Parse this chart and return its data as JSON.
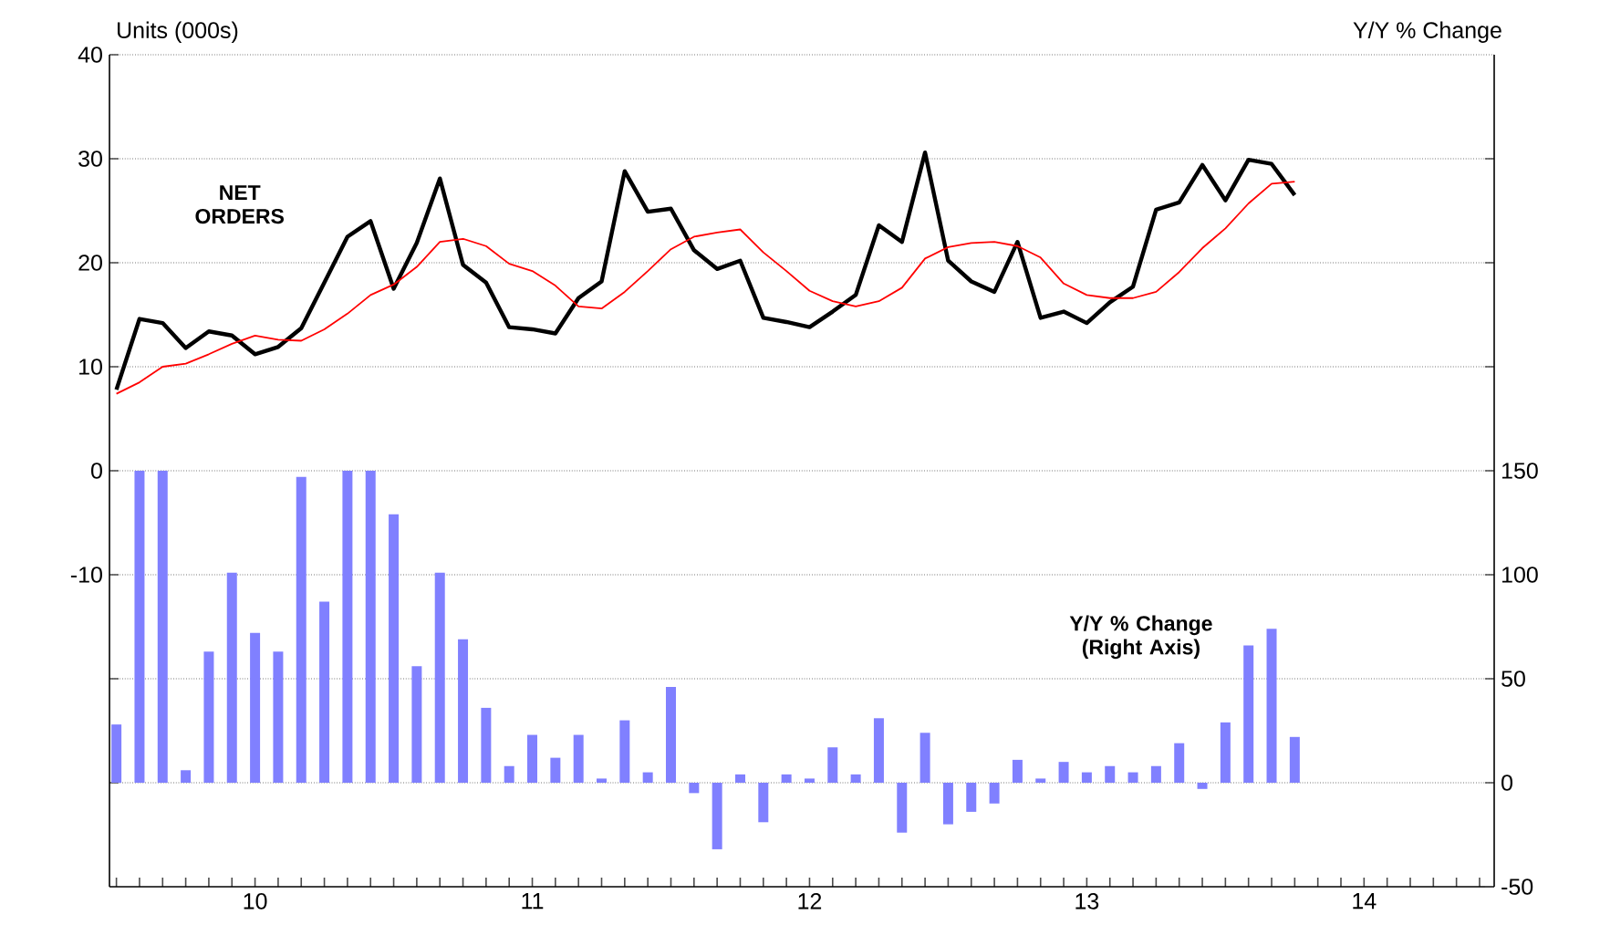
{
  "chart_data": {
    "type": "line",
    "ylabel": "Units (000s)",
    "y2label": "Y/Y % Change",
    "x": [
      "2010-01",
      "2010-02",
      "2010-03",
      "2010-04",
      "2010-05",
      "2010-06",
      "2010-07",
      "2010-08",
      "2010-09",
      "2010-10",
      "2010-11",
      "2010-12",
      "2011-01",
      "2011-02",
      "2011-03",
      "2011-04",
      "2011-05",
      "2011-06",
      "2011-07",
      "2011-08",
      "2011-09",
      "2011-10",
      "2011-11",
      "2011-12",
      "2012-01",
      "2012-02",
      "2012-03",
      "2012-04",
      "2012-05",
      "2012-06",
      "2012-07",
      "2012-08",
      "2012-09",
      "2012-10",
      "2012-11",
      "2012-12",
      "2013-01",
      "2013-02",
      "2013-03",
      "2013-04",
      "2013-05",
      "2013-06",
      "2013-07",
      "2013-08",
      "2013-09",
      "2013-10",
      "2013-11",
      "2013-12",
      "2014-01",
      "2014-02",
      "2014-03",
      "2014-04"
    ],
    "series": [
      {
        "name": "NET ORDERS",
        "color": "#000000",
        "values": [
          7.8,
          14.6,
          14.2,
          11.8,
          13.4,
          13.0,
          11.2,
          11.9,
          13.7,
          18.1,
          22.5,
          24.0,
          17.5,
          21.9,
          28.1,
          19.8,
          18.1,
          13.8,
          13.6,
          13.2,
          16.6,
          18.2,
          28.8,
          24.9,
          25.2,
          21.2,
          19.4,
          20.2,
          14.7,
          14.3,
          13.8,
          15.3,
          16.9,
          23.6,
          22.0,
          30.6,
          20.2,
          18.2,
          17.2,
          22.0,
          14.7,
          15.3,
          14.2,
          16.2,
          17.7,
          25.1,
          25.8,
          29.4,
          26.0,
          29.9,
          29.5,
          26.5
        ]
      },
      {
        "color": "#ff0000",
        "values": [
          7.4,
          8.5,
          10.0,
          10.3,
          11.2,
          12.2,
          13.0,
          12.6,
          12.5,
          13.6,
          15.1,
          16.9,
          17.9,
          19.6,
          22.0,
          22.3,
          21.6,
          19.9,
          19.2,
          17.8,
          15.8,
          15.6,
          17.2,
          19.2,
          21.3,
          22.5,
          22.9,
          23.2,
          21.0,
          19.2,
          17.3,
          16.3,
          15.8,
          16.3,
          17.6,
          20.4,
          21.5,
          21.9,
          22.0,
          21.6,
          20.5,
          18.0,
          16.9,
          16.6,
          16.6,
          17.2,
          19.1,
          21.4,
          23.3,
          25.7,
          27.6,
          27.8
        ]
      },
      {
        "name": "Y/Y % Change (Right Axis)",
        "type": "bar",
        "axis": "y2",
        "color": "#8080ff",
        "values": [
          28,
          150,
          150,
          6,
          63,
          101,
          72,
          63,
          147,
          87,
          150,
          150,
          129,
          56,
          101,
          69,
          36,
          8,
          23,
          12,
          23,
          2,
          30,
          5,
          46,
          -5,
          -32,
          4,
          -19,
          4,
          2,
          17,
          4,
          31,
          -24,
          24,
          -20,
          -14,
          -10,
          11,
          2,
          10,
          5,
          8,
          5,
          8,
          19,
          -3,
          29,
          66,
          74,
          22
        ]
      }
    ],
    "xlim": [
      "2009-12-22",
      "2014-12-20"
    ],
    "xticks": [
      {
        "value": "2010-01",
        "label": null
      },
      {
        "value": "2010-02",
        "label": null
      },
      {
        "value": "2010-03",
        "label": null
      },
      {
        "value": "2010-04",
        "label": null
      },
      {
        "value": "2010-05",
        "label": null
      },
      {
        "value": "2010-06",
        "label": null
      },
      {
        "value": "2010-07",
        "label": "10"
      },
      {
        "value": "2010-08",
        "label": null
      },
      {
        "value": "2010-09",
        "label": null
      },
      {
        "value": "2010-10",
        "label": null
      },
      {
        "value": "2010-11",
        "label": null
      },
      {
        "value": "2010-12",
        "label": null
      },
      {
        "value": "2011-01",
        "label": null
      },
      {
        "value": "2011-02",
        "label": null
      },
      {
        "value": "2011-03",
        "label": null
      },
      {
        "value": "2011-04",
        "label": null
      },
      {
        "value": "2011-05",
        "label": null
      },
      {
        "value": "2011-06",
        "label": null
      },
      {
        "value": "2011-07",
        "label": "11"
      },
      {
        "value": "2011-08",
        "label": null
      },
      {
        "value": "2011-09",
        "label": null
      },
      {
        "value": "2011-10",
        "label": null
      },
      {
        "value": "2011-11",
        "label": null
      },
      {
        "value": "2011-12",
        "label": null
      },
      {
        "value": "2012-01",
        "label": null
      },
      {
        "value": "2012-02",
        "label": null
      },
      {
        "value": "2012-03",
        "label": null
      },
      {
        "value": "2012-04",
        "label": null
      },
      {
        "value": "2012-05",
        "label": null
      },
      {
        "value": "2012-06",
        "label": null
      },
      {
        "value": "2012-07",
        "label": "12"
      },
      {
        "value": "2012-08",
        "label": null
      },
      {
        "value": "2012-09",
        "label": null
      },
      {
        "value": "2012-10",
        "label": null
      },
      {
        "value": "2012-11",
        "label": null
      },
      {
        "value": "2012-12",
        "label": null
      },
      {
        "value": "2013-01",
        "label": null
      },
      {
        "value": "2013-02",
        "label": null
      },
      {
        "value": "2013-03",
        "label": null
      },
      {
        "value": "2013-04",
        "label": null
      },
      {
        "value": "2013-05",
        "label": null
      },
      {
        "value": "2013-06",
        "label": null
      },
      {
        "value": "2013-07",
        "label": "13"
      },
      {
        "value": "2013-08",
        "label": null
      },
      {
        "value": "2013-09",
        "label": null
      },
      {
        "value": "2013-10",
        "label": null
      },
      {
        "value": "2013-11",
        "label": null
      },
      {
        "value": "2013-12",
        "label": null
      },
      {
        "value": "2014-01",
        "label": null
      },
      {
        "value": "2014-02",
        "label": null
      },
      {
        "value": "2014-03",
        "label": null
      },
      {
        "value": "2014-04",
        "label": null
      },
      {
        "value": "2014-05",
        "label": null
      },
      {
        "value": "2014-06",
        "label": null
      },
      {
        "value": "2014-07",
        "label": "14"
      },
      {
        "value": "2014-08",
        "label": null
      },
      {
        "value": "2014-09",
        "label": null
      },
      {
        "value": "2014-10",
        "label": null
      },
      {
        "value": "2014-11",
        "label": null
      },
      {
        "value": "2014-12",
        "label": null
      }
    ],
    "ylim": [
      -40,
      40
    ],
    "yticks": [
      {
        "value": -30,
        "label": null
      },
      {
        "value": -20,
        "label": null
      },
      -10,
      0,
      10,
      20,
      30,
      40
    ],
    "y2lim": [
      -50,
      350
    ],
    "y2ticks": [
      -50,
      0,
      50,
      100,
      150,
      {
        "value": 200,
        "label": null
      },
      {
        "value": 250,
        "label": null
      },
      {
        "value": 300,
        "label": null
      }
    ],
    "grid": "y"
  }
}
